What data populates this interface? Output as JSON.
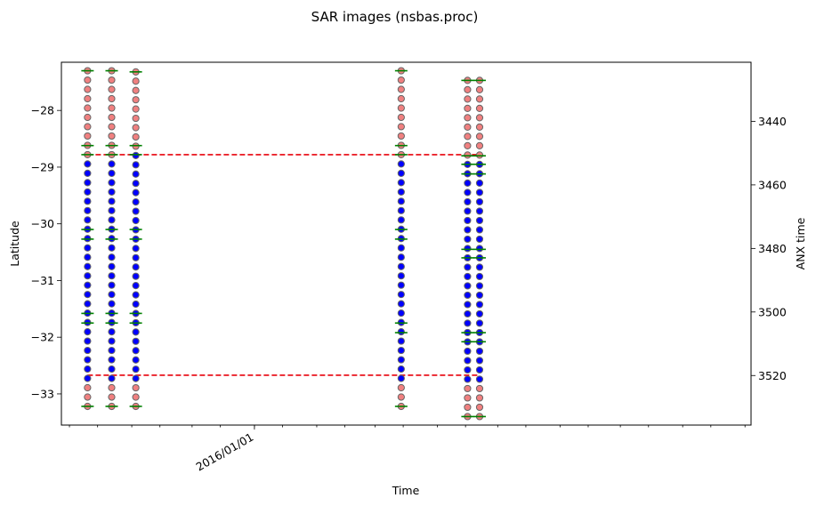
{
  "chart_data": {
    "type": "scatter",
    "title": "SAR images (nsbas.proc)",
    "xlabel": "Time",
    "ylabel": "Latitude",
    "y2label": "ANX time",
    "xlim": [
      "2015-09-27",
      "2016-09-04"
    ],
    "ylim": [
      -33.55,
      -27.15
    ],
    "y2lim": [
      3535.6,
      3421.4
    ],
    "x_ticks": [
      {
        "x": "2016-01-01",
        "label": "2016/01/01"
      }
    ],
    "y_ticks": [
      {
        "value": -28,
        "label": "−28"
      },
      {
        "value": -29,
        "label": "−29"
      },
      {
        "value": -30,
        "label": "−30"
      },
      {
        "value": -31,
        "label": "−31"
      },
      {
        "value": -32,
        "label": "−32"
      },
      {
        "value": -33,
        "label": "−33"
      }
    ],
    "y2_ticks": [
      {
        "value": 3440,
        "label": "3440"
      },
      {
        "value": 3460,
        "label": "3460"
      },
      {
        "value": 3480,
        "label": "3480"
      },
      {
        "value": 3500,
        "label": "3500"
      },
      {
        "value": 3520,
        "label": "3520"
      }
    ],
    "point_spacing_latitude": 0.166,
    "dates": [
      {
        "date": "2015-10-10",
        "lat_min": -33.22,
        "lat_max": -27.3,
        "sel_min": -32.75,
        "sel_max": -28.8,
        "burst_lines": [
          -27.3,
          -28.62,
          -28.78,
          -30.1,
          -30.27,
          -31.58,
          -31.75,
          -33.22
        ]
      },
      {
        "date": "2015-10-22",
        "lat_min": -33.22,
        "lat_max": -27.3,
        "sel_min": -32.75,
        "sel_max": -28.8,
        "burst_lines": [
          -27.3,
          -28.62,
          -28.78,
          -30.1,
          -30.27,
          -31.58,
          -31.75,
          -33.22
        ]
      },
      {
        "date": "2015-11-03",
        "lat_min": -33.22,
        "lat_max": -27.32,
        "sel_min": -32.75,
        "sel_max": -28.8,
        "burst_lines": [
          -27.32,
          -28.62,
          -28.78,
          -30.1,
          -30.27,
          -31.58,
          -31.75,
          -33.22
        ]
      },
      {
        "date": "2016-03-14",
        "lat_min": -33.22,
        "lat_max": -27.3,
        "sel_min": -32.75,
        "sel_max": -28.8,
        "burst_lines": [
          -27.3,
          -28.62,
          -28.78,
          -30.1,
          -30.27,
          -31.75,
          -31.92,
          -33.22
        ]
      },
      {
        "date": "2016-04-16",
        "lat_min": -33.4,
        "lat_max": -27.47,
        "sel_min": -32.75,
        "sel_max": -28.8,
        "burst_lines": [
          -27.47,
          -28.8,
          -28.95,
          -29.12,
          -30.45,
          -30.6,
          -31.92,
          -32.08,
          -33.4
        ]
      },
      {
        "date": "2016-04-22",
        "lat_min": -33.4,
        "lat_max": -27.47,
        "sel_min": -32.75,
        "sel_max": -28.8,
        "burst_lines": [
          -27.47,
          -28.8,
          -28.95,
          -29.12,
          -30.45,
          -30.6,
          -31.92,
          -32.08,
          -33.4
        ]
      }
    ],
    "hlines": [
      {
        "lat": -28.78,
        "x_from": "2015-10-10",
        "x_to": "2016-04-22",
        "color": "#e8000b",
        "style": "dashed"
      },
      {
        "lat": -32.67,
        "x_from": "2015-10-10",
        "x_to": "2016-04-22",
        "color": "#e8000b",
        "style": "dashed"
      }
    ],
    "colors": {
      "selected_fill": "#0000ff",
      "unselected_fill": "#f08080",
      "marker_edge": "#666666",
      "burst_line": "#008000",
      "limit_line": "#e8000b"
    },
    "grid": false,
    "legend": "none"
  }
}
